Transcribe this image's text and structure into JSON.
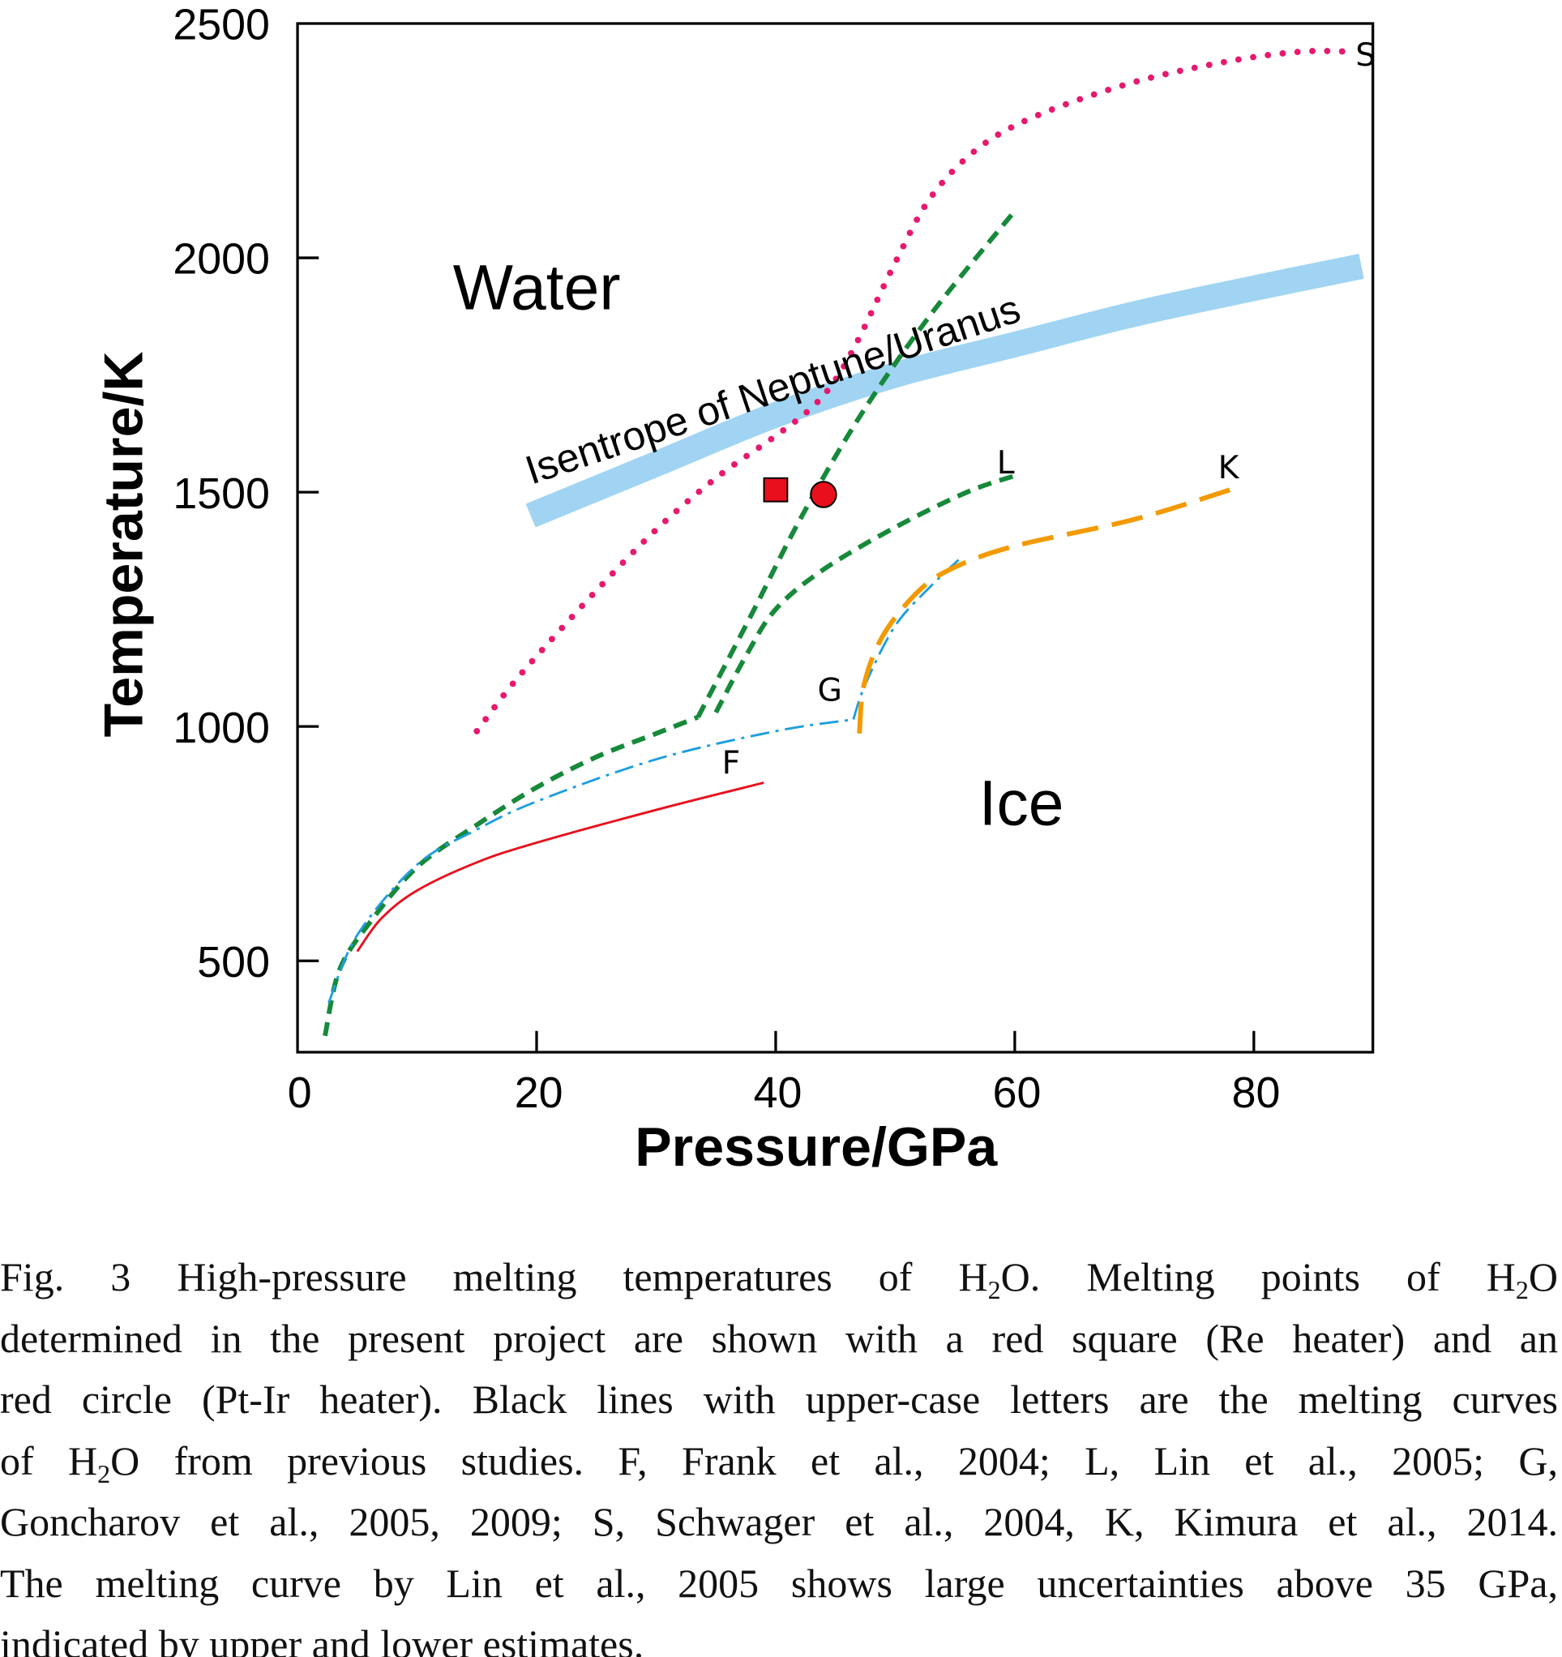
{
  "chart_data": {
    "type": "line",
    "xlabel": "Pressure/GPa",
    "ylabel": "Temperature/K",
    "xlim": [
      0,
      90
    ],
    "ylim": [
      305,
      2500
    ],
    "xticks": [
      0,
      20,
      40,
      60,
      80
    ],
    "yticks": [
      500,
      1000,
      1500,
      2000,
      2500
    ],
    "grid": false,
    "region_labels": [
      {
        "text": "Water",
        "x": 13,
        "y": 1890
      },
      {
        "text": "Ice",
        "x": 57,
        "y": 790
      }
    ],
    "series": [
      {
        "name": "S",
        "label": "S",
        "style": "dotted",
        "color": "#e6196e",
        "label_at": [
          88.5,
          2410
        ],
        "segments": [
          [
            [
              15,
              990
            ],
            [
              17.5,
              1075
            ],
            [
              20,
              1150
            ],
            [
              25,
              1290
            ],
            [
              30,
              1420
            ],
            [
              35,
              1530
            ],
            [
              40,
              1620
            ],
            [
              43,
              1680
            ],
            [
              45,
              1740
            ],
            [
              47,
              1830
            ],
            [
              50,
              1990
            ],
            [
              53,
              2130
            ],
            [
              57,
              2235
            ],
            [
              62,
              2305
            ],
            [
              70,
              2375
            ],
            [
              78,
              2420
            ],
            [
              84,
              2440
            ],
            [
              88,
              2440
            ]
          ]
        ]
      },
      {
        "name": "L (upper)",
        "label": "L",
        "style": "dashed",
        "color": "#16893a",
        "label_at": [
          58.5,
          1540
        ],
        "segments": [
          [
            [
              2.3,
              340
            ],
            [
              3.5,
              480
            ],
            [
              6,
              580
            ],
            [
              10,
              700
            ],
            [
              15,
              790
            ],
            [
              20,
              870
            ],
            [
              25,
              935
            ],
            [
              30,
              985
            ],
            [
              33.5,
              1020
            ]
          ],
          [
            [
              33.5,
              1020
            ],
            [
              38,
              1240
            ],
            [
              42,
              1440
            ],
            [
              47,
              1660
            ],
            [
              53,
              1880
            ],
            [
              60,
              2100
            ]
          ]
        ]
      },
      {
        "name": "L (lower)",
        "label": "",
        "style": "dashed",
        "color": "#16893a",
        "segments": [
          [
            [
              35,
              1030
            ],
            [
              37.5,
              1150
            ],
            [
              40,
              1250
            ],
            [
              44,
              1335
            ],
            [
              50,
              1425
            ],
            [
              56,
              1500
            ],
            [
              60,
              1535
            ]
          ]
        ]
      },
      {
        "name": "G",
        "label": "G",
        "style": "dashdot",
        "color": "#1e9ee0",
        "label_at": [
          43.5,
          1055
        ],
        "segments": [
          [
            [
              2.6,
              410
            ],
            [
              5,
              555
            ],
            [
              10,
              705
            ],
            [
              15,
              780
            ],
            [
              20,
              840
            ],
            [
              30,
              930
            ],
            [
              40,
              990
            ],
            [
              46.5,
              1015
            ]
          ],
          [
            [
              46.5,
              1015
            ],
            [
              47.5,
              1090
            ],
            [
              50,
              1215
            ],
            [
              53,
              1300
            ],
            [
              55.5,
              1360
            ]
          ]
        ]
      },
      {
        "name": "F",
        "label": "F",
        "style": "solid",
        "color": "#e8101c",
        "label_at": [
          35.5,
          900
        ],
        "segments": [
          [
            [
              5,
              520
            ],
            [
              7,
              590
            ],
            [
              10,
              650
            ],
            [
              15,
              710
            ],
            [
              20,
              752
            ],
            [
              30,
              822
            ],
            [
              39,
              880
            ]
          ]
        ]
      },
      {
        "name": "K",
        "label": "K",
        "style": "longdash",
        "color": "#f29a00",
        "label_at": [
          77,
          1530
        ],
        "segments": [
          [
            [
              47,
              985
            ],
            [
              47.4,
              1090
            ],
            [
              49,
              1195
            ],
            [
              52,
              1290
            ],
            [
              55,
              1340
            ],
            [
              60,
              1385
            ],
            [
              70,
              1442
            ],
            [
              78,
              1505
            ]
          ]
        ]
      }
    ],
    "isentrope": {
      "label": "Isentrope of Neptune/Uranus",
      "color": "#a0d4f2",
      "points": [
        [
          19.5,
          1450
        ],
        [
          30,
          1560
        ],
        [
          40,
          1665
        ],
        [
          50,
          1750
        ],
        [
          60,
          1815
        ],
        [
          70,
          1880
        ],
        [
          80,
          1935
        ],
        [
          89,
          1982
        ]
      ]
    },
    "markers": [
      {
        "name": "Re heater",
        "shape": "square",
        "x": 40,
        "y": 1505,
        "color": "#e8101c"
      },
      {
        "name": "Pt-Ir heater",
        "shape": "circle",
        "x": 44,
        "y": 1495,
        "color": "#e8101c"
      }
    ]
  },
  "caption": {
    "lines": [
      [
        {
          "t": "Fig. 3 High-pressure melting temperatures of H"
        },
        {
          "t": "2",
          "sub": true
        },
        {
          "t": "O. Melting points of H"
        },
        {
          "t": "2",
          "sub": true
        },
        {
          "t": "O"
        }
      ],
      [
        {
          "t": "determined in the present project are shown with a red square (Re heater) and an"
        }
      ],
      [
        {
          "t": "red circle (Pt-Ir heater). Black lines with upper-case letters are the melting curves"
        }
      ],
      [
        {
          "t": "of H"
        },
        {
          "t": "2",
          "sub": true
        },
        {
          "t": "O from previous studies. F, Frank et al., 2004; L, Lin et al., 2005; G,"
        }
      ],
      [
        {
          "t": "Goncharov et al., 2005, 2009; S, Schwager et al., 2004, K, Kimura et al., 2014."
        }
      ],
      [
        {
          "t": "The melting curve by Lin et al., 2005 shows large uncertainties above 35 GPa,"
        }
      ],
      [
        {
          "t": "indicated by upper and lower estimates."
        }
      ]
    ]
  }
}
